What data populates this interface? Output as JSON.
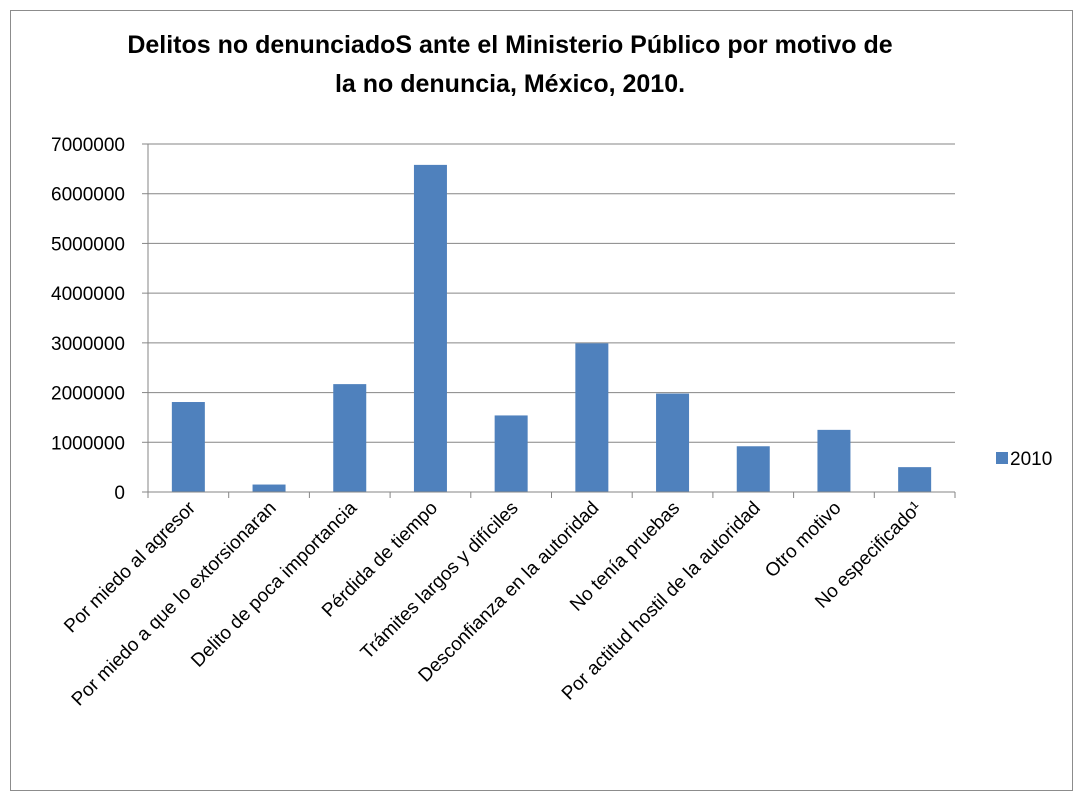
{
  "chart_data": {
    "type": "bar",
    "title": "Delitos no denunciadoS ante el Ministerio Público por motivo de la no denuncia, México, 2010.",
    "xlabel": "",
    "ylabel": "",
    "categories": [
      "Por miedo al agresor",
      "Por miedo a que lo extorsionaran",
      "Delito de poca importancia",
      "Pérdida de tiempo",
      "Trámites largos y difíciles",
      "Desconfianza en la autoridad",
      "No tenía pruebas",
      "Por actitud hostil de la autoridad",
      "Otro motivo",
      "No especificado¹"
    ],
    "series": [
      {
        "name": "2010",
        "color": "#4f81bd",
        "values": [
          1810000,
          150000,
          2170000,
          6580000,
          1540000,
          2990000,
          1980000,
          920000,
          1250000,
          500000
        ]
      }
    ],
    "ylim": [
      0,
      7000000
    ],
    "yticks": [
      "0",
      "1000000",
      "2000000",
      "3000000",
      "4000000",
      "5000000",
      "6000000",
      "7000000"
    ],
    "ytick_values": [
      0,
      1000000,
      2000000,
      3000000,
      4000000,
      5000000,
      6000000,
      7000000
    ],
    "grid": true,
    "legend_position": "right"
  }
}
